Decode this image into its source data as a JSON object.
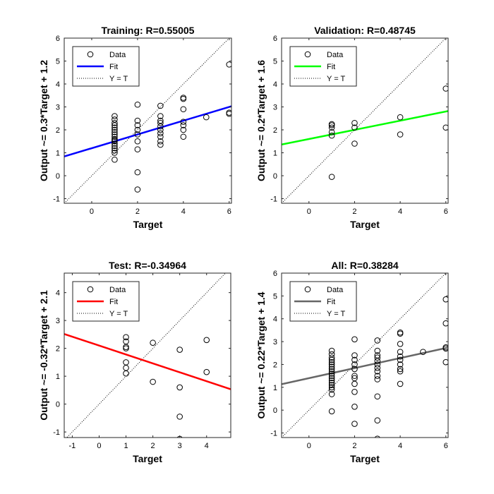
{
  "chart_data": [
    {
      "type": "scatter",
      "title": "Training: R=0.55005",
      "xlabel": "Target",
      "ylabel": "Output ~= 0.3*Target + 1.2",
      "xlim": [
        -1.2,
        6.1
      ],
      "ylim": [
        -1.2,
        6.0
      ],
      "xticks": [
        0,
        2,
        4,
        6
      ],
      "yticks": [
        -1,
        0,
        1,
        2,
        3,
        4,
        5,
        6
      ],
      "fit_color": "#0000ff",
      "fit_line": {
        "slope": 0.3,
        "intercept": 1.2
      },
      "legend": [
        "Data",
        "Fit",
        "Y = T"
      ],
      "legend_position": "top-left",
      "points": [
        [
          1,
          0.7
        ],
        [
          1,
          1.0
        ],
        [
          1,
          1.1
        ],
        [
          1,
          1.2
        ],
        [
          1,
          1.3
        ],
        [
          1,
          1.4
        ],
        [
          1,
          1.5
        ],
        [
          1,
          1.55
        ],
        [
          1,
          1.6
        ],
        [
          1,
          1.7
        ],
        [
          1,
          1.8
        ],
        [
          1,
          1.9
        ],
        [
          1,
          2.0
        ],
        [
          1,
          2.1
        ],
        [
          1,
          2.2
        ],
        [
          1,
          2.3
        ],
        [
          1,
          2.45
        ],
        [
          1,
          2.6
        ],
        [
          2,
          -0.6
        ],
        [
          2,
          0.15
        ],
        [
          2,
          1.15
        ],
        [
          2,
          1.5
        ],
        [
          2,
          1.8
        ],
        [
          2,
          2.0
        ],
        [
          2,
          2.2
        ],
        [
          2,
          2.4
        ],
        [
          2,
          3.1
        ],
        [
          3,
          1.35
        ],
        [
          3,
          1.5
        ],
        [
          3,
          1.7
        ],
        [
          3,
          1.85
        ],
        [
          3,
          2.0
        ],
        [
          3,
          2.15
        ],
        [
          3,
          2.3
        ],
        [
          3,
          2.4
        ],
        [
          3,
          2.6
        ],
        [
          3,
          3.05
        ],
        [
          4,
          1.7
        ],
        [
          4,
          2.0
        ],
        [
          4,
          2.2
        ],
        [
          4,
          2.35
        ],
        [
          4,
          2.9
        ],
        [
          4,
          3.35
        ],
        [
          4,
          3.4
        ],
        [
          5,
          2.55
        ],
        [
          6,
          2.7
        ],
        [
          6,
          2.75
        ],
        [
          6,
          4.85
        ]
      ]
    },
    {
      "type": "scatter",
      "title": "Validation: R=0.48745",
      "xlabel": "Target",
      "ylabel": "Output ~= 0.2*Target + 1.6",
      "xlim": [
        -1.2,
        6.1
      ],
      "ylim": [
        -1.2,
        6.0
      ],
      "xticks": [
        0,
        2,
        4,
        6
      ],
      "yticks": [
        -1,
        0,
        1,
        2,
        3,
        4,
        5,
        6
      ],
      "fit_color": "#00ff00",
      "fit_line": {
        "slope": 0.2,
        "intercept": 1.6
      },
      "legend": [
        "Data",
        "Fit",
        "Y = T"
      ],
      "legend_position": "top-left",
      "points": [
        [
          1,
          -0.05
        ],
        [
          1,
          1.75
        ],
        [
          1,
          1.9
        ],
        [
          1,
          2.1
        ],
        [
          1,
          2.2
        ],
        [
          1,
          2.25
        ],
        [
          2,
          1.4
        ],
        [
          2,
          2.1
        ],
        [
          2,
          2.3
        ],
        [
          4,
          1.8
        ],
        [
          4,
          2.55
        ],
        [
          6,
          2.1
        ],
        [
          6,
          3.8
        ]
      ]
    },
    {
      "type": "scatter",
      "title": "Test: R=-0.34964",
      "xlabel": "Target",
      "ylabel": "Output ~= -0.32*Target + 2.1",
      "xlim": [
        -1.3,
        4.9
      ],
      "ylim": [
        -1.2,
        4.7
      ],
      "xticks": [
        -1,
        0,
        1,
        2,
        3,
        4
      ],
      "yticks": [
        -1,
        0,
        1,
        2,
        3,
        4
      ],
      "fit_color": "#ff0000",
      "fit_line": {
        "slope": -0.32,
        "intercept": 2.1
      },
      "legend": [
        "Data",
        "Fit",
        "Y = T"
      ],
      "legend_position": "top-left",
      "points": [
        [
          1,
          1.1
        ],
        [
          1,
          1.3
        ],
        [
          1,
          1.5
        ],
        [
          1,
          2.0
        ],
        [
          1,
          2.05
        ],
        [
          1,
          2.25
        ],
        [
          1,
          2.4
        ],
        [
          2,
          0.8
        ],
        [
          2,
          2.2
        ],
        [
          3,
          -1.25
        ],
        [
          3,
          -0.45
        ],
        [
          3,
          0.6
        ],
        [
          3,
          1.95
        ],
        [
          4,
          1.15
        ],
        [
          4,
          2.3
        ]
      ]
    },
    {
      "type": "scatter",
      "title": "All: R=0.38284",
      "xlabel": "Target",
      "ylabel": "Output ~= 0.22*Target + 1.4",
      "xlim": [
        -1.2,
        6.1
      ],
      "ylim": [
        -1.2,
        6.0
      ],
      "xticks": [
        0,
        2,
        4,
        6
      ],
      "yticks": [
        -1,
        0,
        1,
        2,
        3,
        4,
        5,
        6
      ],
      "fit_color": "#666666",
      "fit_line": {
        "slope": 0.22,
        "intercept": 1.4
      },
      "legend": [
        "Data",
        "Fit",
        "Y = T"
      ],
      "legend_position": "top-left",
      "points": [
        [
          1,
          -0.05
        ],
        [
          1,
          0.7
        ],
        [
          1,
          0.9
        ],
        [
          1,
          1.0
        ],
        [
          1,
          1.1
        ],
        [
          1,
          1.2
        ],
        [
          1,
          1.3
        ],
        [
          1,
          1.4
        ],
        [
          1,
          1.5
        ],
        [
          1,
          1.6
        ],
        [
          1,
          1.7
        ],
        [
          1,
          1.8
        ],
        [
          1,
          1.9
        ],
        [
          1,
          2.0
        ],
        [
          1,
          2.1
        ],
        [
          1,
          2.2
        ],
        [
          1,
          2.3
        ],
        [
          1,
          2.45
        ],
        [
          1,
          2.6
        ],
        [
          2,
          -0.6
        ],
        [
          2,
          0.15
        ],
        [
          2,
          0.8
        ],
        [
          2,
          1.15
        ],
        [
          2,
          1.4
        ],
        [
          2,
          1.5
        ],
        [
          2,
          1.8
        ],
        [
          2,
          2.0
        ],
        [
          2,
          2.2
        ],
        [
          2,
          2.4
        ],
        [
          2,
          3.1
        ],
        [
          3,
          -1.25
        ],
        [
          3,
          -0.45
        ],
        [
          3,
          0.6
        ],
        [
          3,
          1.35
        ],
        [
          3,
          1.5
        ],
        [
          3,
          1.7
        ],
        [
          3,
          1.85
        ],
        [
          3,
          2.0
        ],
        [
          3,
          2.15
        ],
        [
          3,
          2.3
        ],
        [
          3,
          2.4
        ],
        [
          3,
          2.6
        ],
        [
          3,
          3.05
        ],
        [
          4,
          1.15
        ],
        [
          4,
          1.7
        ],
        [
          4,
          1.8
        ],
        [
          4,
          2.0
        ],
        [
          4,
          2.2
        ],
        [
          4,
          2.35
        ],
        [
          4,
          2.55
        ],
        [
          4,
          2.9
        ],
        [
          4,
          3.35
        ],
        [
          4,
          3.4
        ],
        [
          5,
          2.55
        ],
        [
          6,
          2.1
        ],
        [
          6,
          2.7
        ],
        [
          6,
          2.75
        ],
        [
          6,
          3.8
        ],
        [
          6,
          4.85
        ]
      ]
    }
  ]
}
